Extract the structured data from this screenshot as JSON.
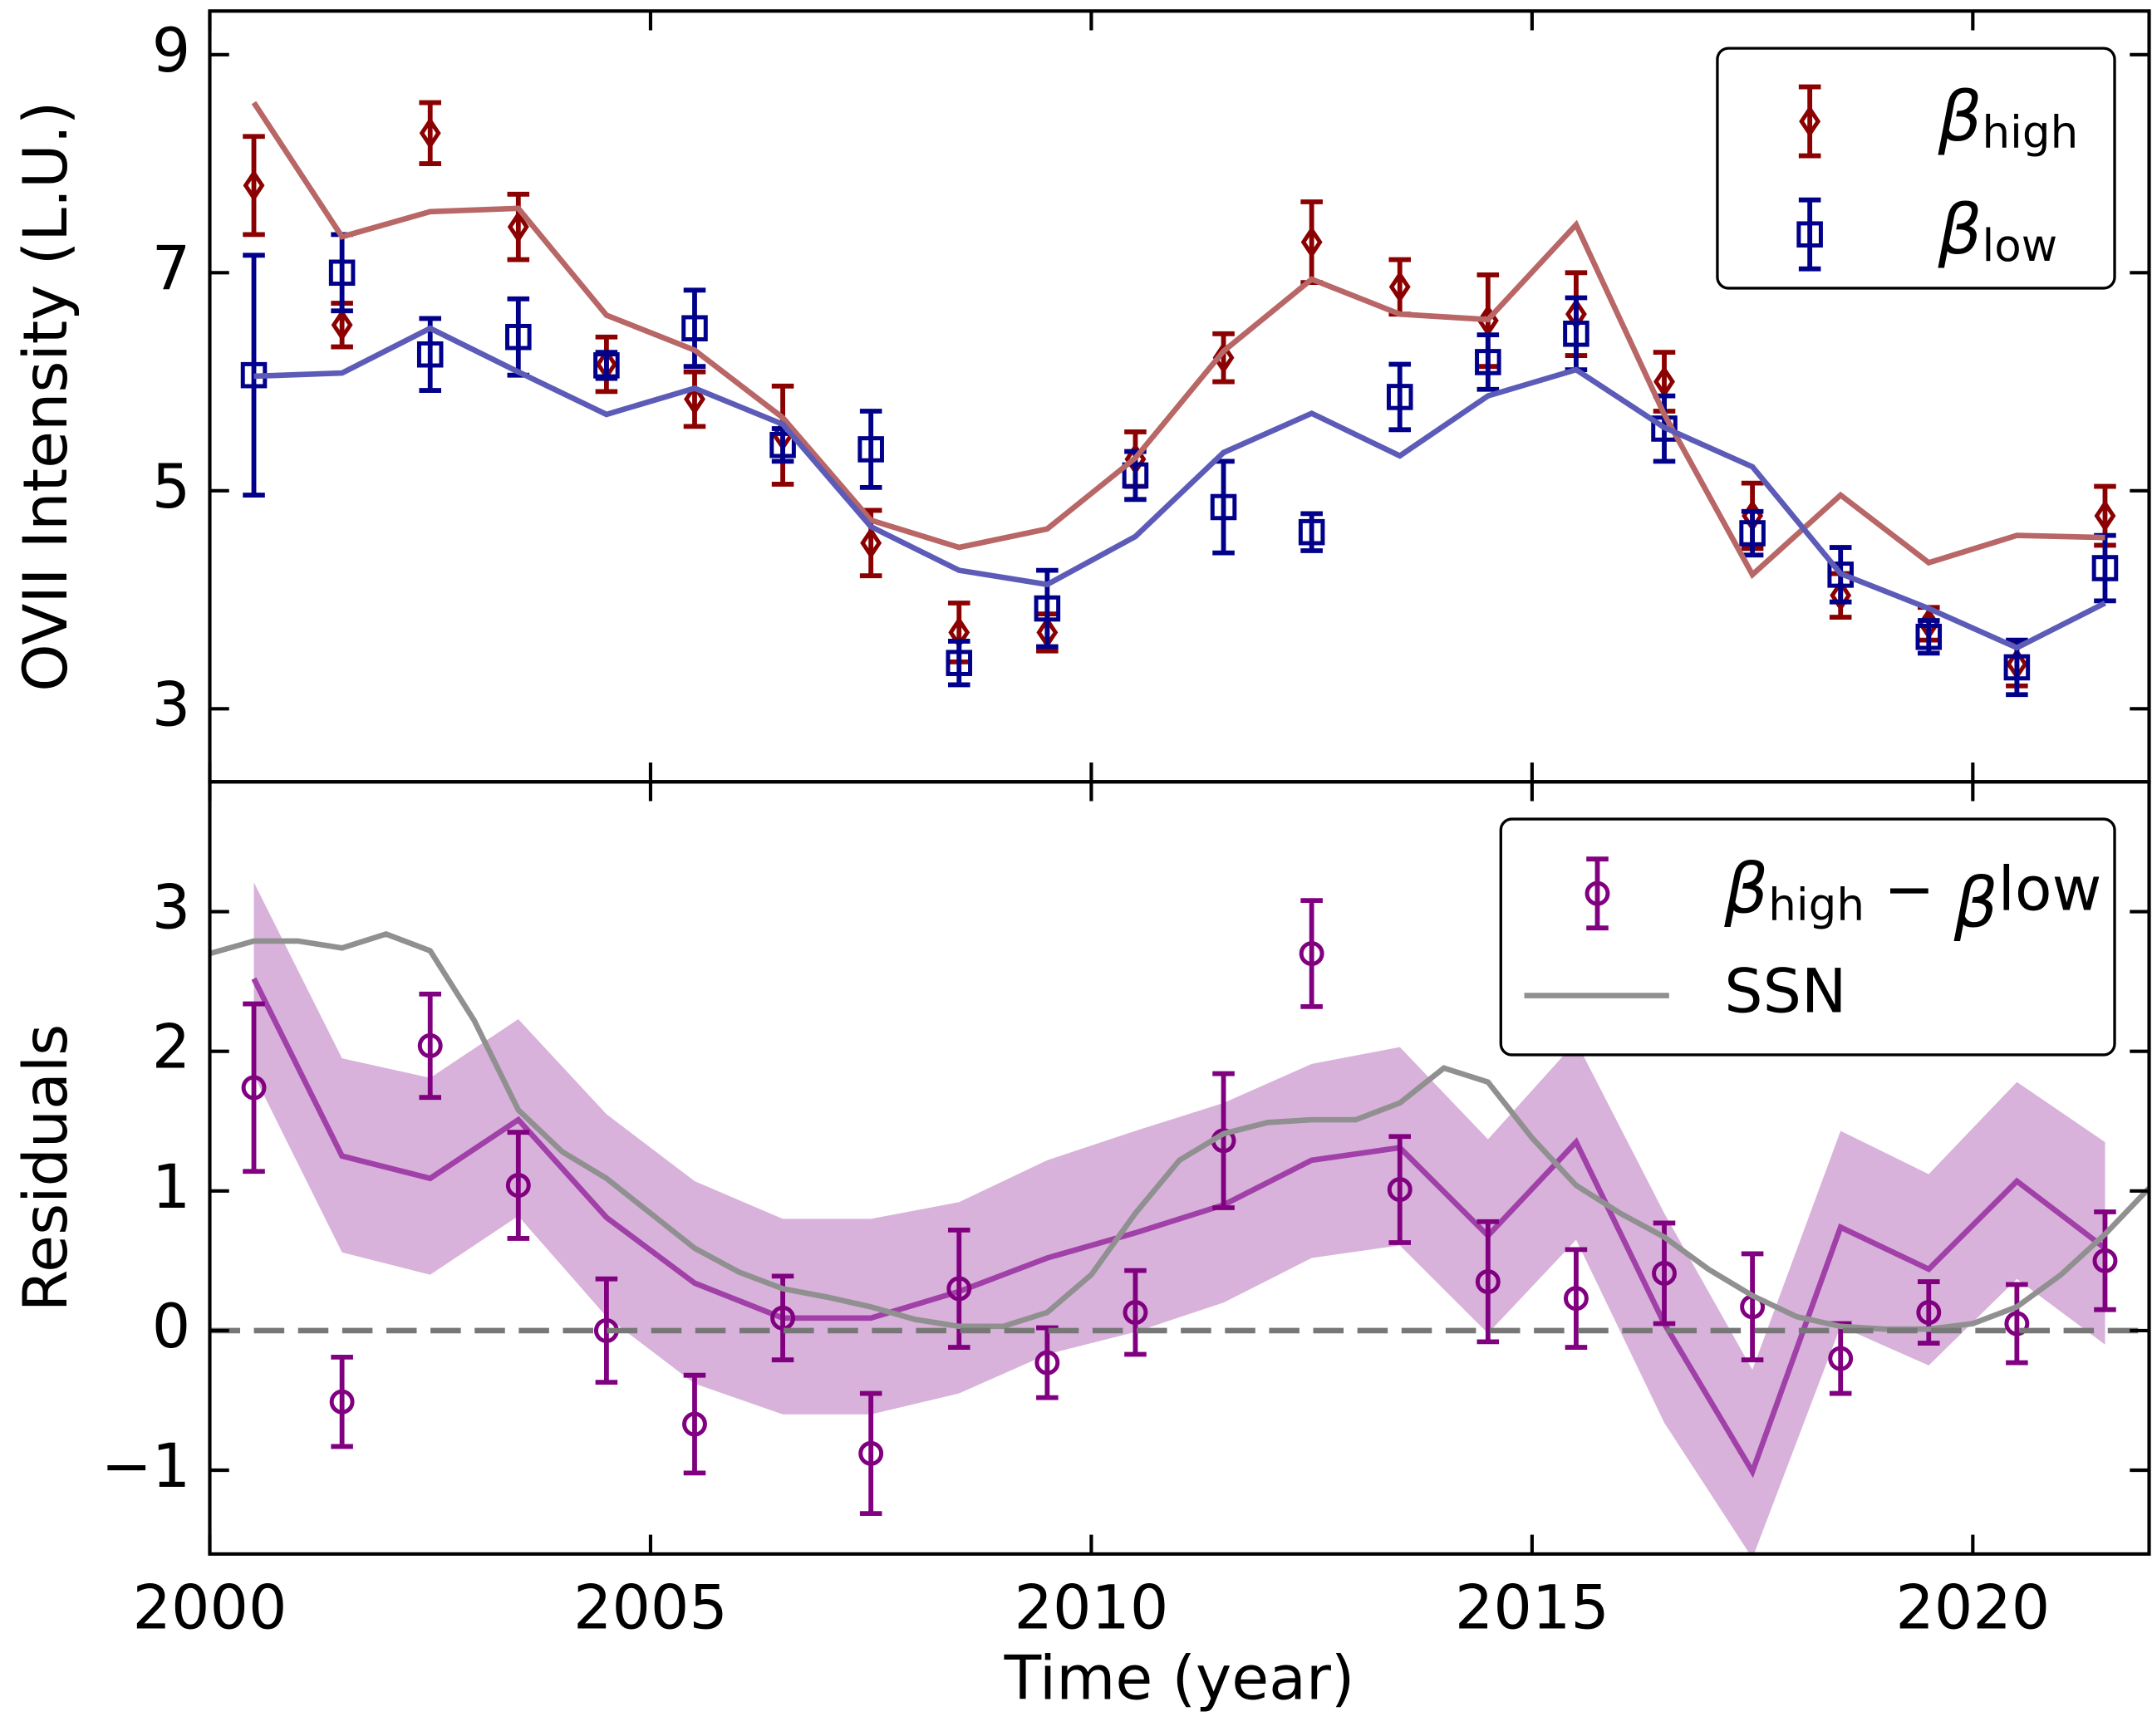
{
  "chart_data": [
    {
      "type": "errorbar",
      "ylabel": "OVII Intensity (L.U.)",
      "ylim": [
        2.33,
        9.4
      ],
      "yticks": [
        3,
        5,
        7,
        9
      ],
      "legend": "upper right",
      "x": [
        2000.5,
        2001.5,
        2002.5,
        2003.5,
        2004.5,
        2005.5,
        2006.5,
        2007.5,
        2008.5,
        2009.5,
        2010.5,
        2011.5,
        2012.5,
        2013.5,
        2014.5,
        2015.5,
        2016.5,
        2017.5,
        2018.5,
        2019.5,
        2020.5,
        2021.5
      ],
      "series": [
        {
          "name": [
            "β",
            "high"
          ],
          "marker": "diamond",
          "color": "#8b0000",
          "values": [
            7.8,
            6.52,
            8.28,
            7.42,
            6.16,
            5.84,
            5.51,
            4.52,
            3.7,
            3.7,
            5.29,
            6.22,
            7.28,
            6.87,
            6.56,
            6.62,
            6.0,
            4.77,
            4.04,
            3.78,
            3.41,
            4.77
          ],
          "errors": [
            0.45,
            0.2,
            0.28,
            0.3,
            0.25,
            0.25,
            0.45,
            0.3,
            0.27,
            0.17,
            0.25,
            0.22,
            0.37,
            0.25,
            0.42,
            0.38,
            0.27,
            0.3,
            0.2,
            0.15,
            0.2,
            0.27
          ]
        },
        {
          "name": [
            "β",
            "low"
          ],
          "marker": "square",
          "color": "#00008b",
          "values": [
            6.06,
            7.0,
            6.25,
            6.41,
            6.15,
            6.49,
            5.42,
            5.38,
            3.42,
            3.92,
            5.14,
            4.85,
            4.62,
            5.86,
            6.18,
            6.44,
            5.57,
            4.61,
            4.23,
            3.66,
            3.38,
            4.29
          ],
          "errors": [
            1.1,
            0.35,
            0.33,
            0.35,
            0.12,
            0.35,
            0.15,
            0.35,
            0.2,
            0.35,
            0.22,
            0.42,
            0.17,
            0.3,
            0.25,
            0.33,
            0.3,
            0.2,
            0.25,
            0.15,
            0.25,
            0.3
          ]
        },
        {
          "color": "#b86666",
          "values": [
            8.56,
            7.33,
            7.56,
            7.59,
            6.61,
            6.29,
            5.67,
            4.73,
            4.48,
            4.65,
            5.3,
            6.28,
            6.94,
            6.62,
            6.57,
            7.44,
            5.7,
            4.23,
            4.96,
            4.34,
            4.59,
            4.57
          ]
        },
        {
          "color": "#5c5cb8",
          "values": [
            6.05,
            6.08,
            6.49,
            6.09,
            5.7,
            5.94,
            5.61,
            4.67,
            4.27,
            4.14,
            4.58,
            5.35,
            5.71,
            5.32,
            5.87,
            6.11,
            5.58,
            5.22,
            4.24,
            3.92,
            3.56,
            3.97
          ]
        }
      ]
    },
    {
      "type": "errorbar",
      "ylabel": "Residuals",
      "xlabel": "Time (year)",
      "xlim": [
        2000,
        2022
      ],
      "xticks": [
        2000,
        2005,
        2010,
        2015,
        2020
      ],
      "ylim": [
        -1.6,
        3.93
      ],
      "yticks": [
        {
          "value": -1,
          "label": "−1"
        },
        0,
        1,
        2,
        3
      ],
      "hline": 0,
      "legend": "upper right",
      "x": [
        2000.5,
        2001.5,
        2002.5,
        2003.5,
        2004.5,
        2005.5,
        2006.5,
        2007.5,
        2008.5,
        2009.5,
        2010.5,
        2011.5,
        2012.5,
        2013.5,
        2014.5,
        2015.5,
        2016.5,
        2017.5,
        2018.5,
        2019.5,
        2020.5,
        2021.5
      ],
      "series": [
        {
          "color": "#d8b2da",
          "upper": [
            3.21,
            1.95,
            1.81,
            2.23,
            1.55,
            1.07,
            0.8,
            0.8,
            0.92,
            1.22,
            1.43,
            1.63,
            1.91,
            2.03,
            1.37,
            2.07,
            0.84,
            -0.28,
            1.43,
            1.12,
            1.78,
            1.35
          ],
          "lower": [
            1.83,
            0.56,
            0.4,
            0.82,
            0.1,
            -0.38,
            -0.6,
            -0.6,
            -0.45,
            -0.17,
            -0.01,
            0.2,
            0.52,
            0.61,
            -0.02,
            0.65,
            -0.66,
            -1.63,
            0.03,
            -0.25,
            0.37,
            -0.1
          ]
        },
        {
          "color": "#a040a8",
          "values": [
            2.52,
            1.25,
            1.09,
            1.51,
            0.81,
            0.34,
            0.09,
            0.09,
            0.28,
            0.52,
            0.7,
            0.9,
            1.22,
            1.31,
            0.68,
            1.35,
            0.05,
            -1.01,
            0.74,
            0.44,
            1.07,
            0.59
          ]
        },
        {
          "name": [
            "β",
            "high",
            " − ",
            "β",
            "low"
          ],
          "marker": "circle",
          "color": "#800080",
          "values": [
            1.74,
            -0.51,
            2.04,
            1.04,
            0.0,
            -0.67,
            0.09,
            -0.88,
            0.3,
            -0.23,
            0.13,
            1.36,
            2.7,
            1.01,
            0.35,
            0.23,
            0.41,
            0.17,
            -0.2,
            0.13,
            0.05,
            0.5
          ],
          "errors": [
            0.6,
            0.32,
            0.37,
            0.38,
            0.37,
            0.35,
            0.3,
            0.43,
            0.42,
            0.25,
            0.3,
            0.48,
            0.38,
            0.38,
            0.43,
            0.35,
            0.36,
            0.38,
            0.25,
            0.22,
            0.28,
            0.35
          ]
        },
        {
          "name": [
            "SSN"
          ],
          "color": "#909090",
          "x": [
            2000,
            2000.5,
            2001,
            2001.5,
            2002,
            2002.5,
            2003,
            2003.5,
            2004,
            2004.5,
            2005,
            2005.5,
            2006,
            2006.5,
            2007,
            2007.5,
            2008,
            2008.5,
            2009,
            2009.5,
            2010,
            2010.5,
            2011,
            2011.5,
            2012,
            2012.5,
            2013,
            2013.5,
            2014,
            2014.5,
            2015,
            2015.5,
            2016,
            2016.5,
            2017,
            2017.5,
            2018,
            2018.5,
            2019,
            2019.5,
            2020,
            2020.5,
            2021,
            2021.5,
            2022
          ],
          "values": [
            2.7,
            2.79,
            2.79,
            2.74,
            2.84,
            2.72,
            2.22,
            1.58,
            1.28,
            1.09,
            0.84,
            0.59,
            0.42,
            0.3,
            0.24,
            0.17,
            0.08,
            0.03,
            0.03,
            0.13,
            0.4,
            0.84,
            1.22,
            1.41,
            1.49,
            1.51,
            1.51,
            1.63,
            1.88,
            1.78,
            1.38,
            1.04,
            0.84,
            0.67,
            0.44,
            0.25,
            0.1,
            0.03,
            0.01,
            0.01,
            0.05,
            0.17,
            0.4,
            0.69,
            1.02
          ]
        }
      ]
    }
  ]
}
